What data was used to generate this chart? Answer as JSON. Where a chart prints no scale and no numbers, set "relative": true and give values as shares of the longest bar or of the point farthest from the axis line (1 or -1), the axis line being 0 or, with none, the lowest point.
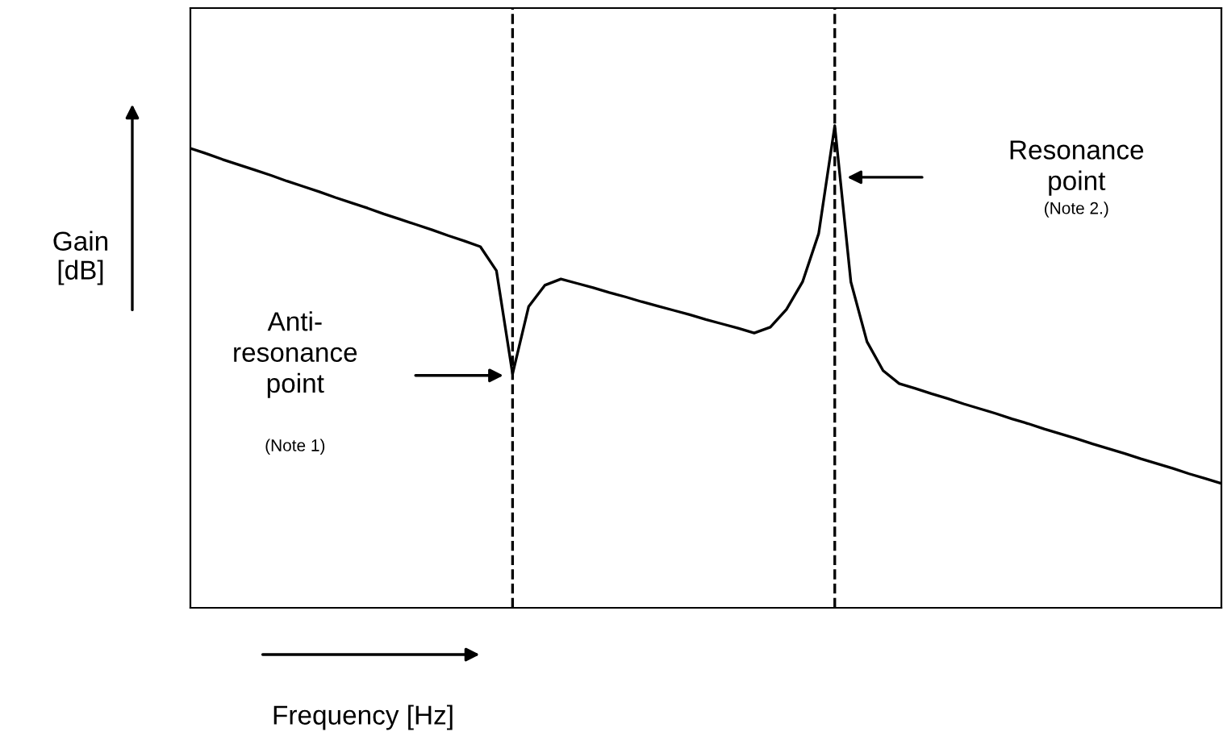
{
  "chart_data": {
    "type": "line",
    "relative": true,
    "xlabel": "Frequency [Hz]",
    "ylabel": "Gain [dB]",
    "tick_labels": false,
    "legend": false,
    "marker": "none",
    "line_style": "solid",
    "categories": [
      null,
      null,
      null,
      null,
      null,
      null,
      null,
      null,
      null,
      null,
      null,
      null,
      null,
      null,
      null,
      null,
      null,
      null,
      null,
      null,
      null,
      null,
      null,
      null,
      null,
      null,
      null,
      null,
      null,
      null,
      null,
      null,
      null,
      null,
      null,
      null,
      null,
      null,
      null,
      null,
      null,
      null,
      null,
      null,
      null,
      null,
      null,
      null,
      null,
      null,
      null,
      null,
      null,
      null,
      null,
      null,
      null,
      null,
      null,
      null,
      null,
      null,
      null,
      null,
      null
    ],
    "series": [
      {
        "color": "#000000",
        "values": [
          0.953,
          0.942,
          0.93,
          0.919,
          0.908,
          0.897,
          0.885,
          0.874,
          0.863,
          0.851,
          0.84,
          0.829,
          0.817,
          0.806,
          0.795,
          0.784,
          0.772,
          0.761,
          0.749,
          0.699,
          0.485,
          0.625,
          0.669,
          0.682,
          0.673,
          0.664,
          0.654,
          0.645,
          0.635,
          0.626,
          0.617,
          0.608,
          0.598,
          0.589,
          0.58,
          0.57,
          0.582,
          0.619,
          0.676,
          0.776,
          1,
          0.676,
          0.552,
          0.492,
          0.465,
          0.455,
          0.444,
          0.434,
          0.423,
          0.413,
          0.403,
          0.392,
          0.382,
          0.371,
          0.361,
          0.351,
          0.34,
          0.33,
          0.32,
          0.309,
          0.299,
          0.289,
          0.278,
          0.268,
          0.258
        ]
      }
    ],
    "annotations": [
      "Anti-\nresonance\npoint",
      "(Note 1)",
      "Resonance\npoint",
      "(Note 2.)"
    ]
  }
}
